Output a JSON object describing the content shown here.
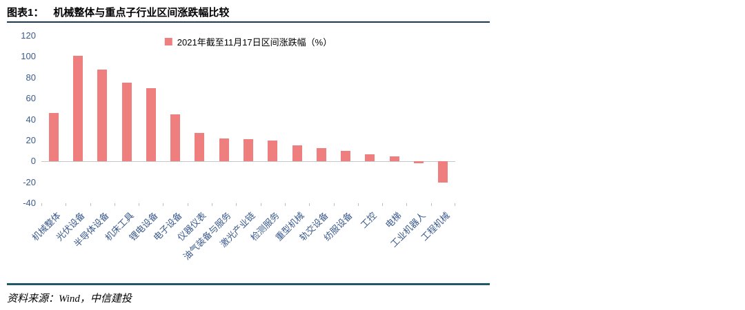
{
  "header": {
    "label": "图表1：",
    "title": "机械整体与重点子行业区间涨跌幅比较"
  },
  "chart_data": {
    "type": "bar",
    "title": "机械整体与重点子行业区间涨跌幅比较",
    "legend": "2021年截至11月17日区间涨跌幅（%）",
    "legend_position": "top",
    "grid": false,
    "categories": [
      "机械整体",
      "光伏设备",
      "半导体设备",
      "机床工具",
      "锂电设备",
      "电子设备",
      "仪器仪表",
      "油气装备与服务",
      "激光产业链",
      "检测服务",
      "重型机械",
      "轨交设备",
      "纺服设备",
      "工控",
      "电梯",
      "工业机器人",
      "工程机械"
    ],
    "values": [
      46,
      101,
      88,
      75,
      70,
      45,
      27,
      22,
      21,
      20,
      15,
      13,
      10,
      7,
      5,
      -2,
      -20
    ],
    "xlabel": "",
    "ylabel": "",
    "ylim": [
      -40,
      120
    ],
    "yticks": [
      -40,
      -20,
      0,
      20,
      40,
      60,
      80,
      100,
      120
    ]
  },
  "footer": {
    "source": "资料来源：Wind，中信建投"
  },
  "colors": {
    "bar": "#ef7f7f",
    "rule_top": "#17365d",
    "rule_bottom": "#215868",
    "axis_label": "#3a5a8c"
  }
}
